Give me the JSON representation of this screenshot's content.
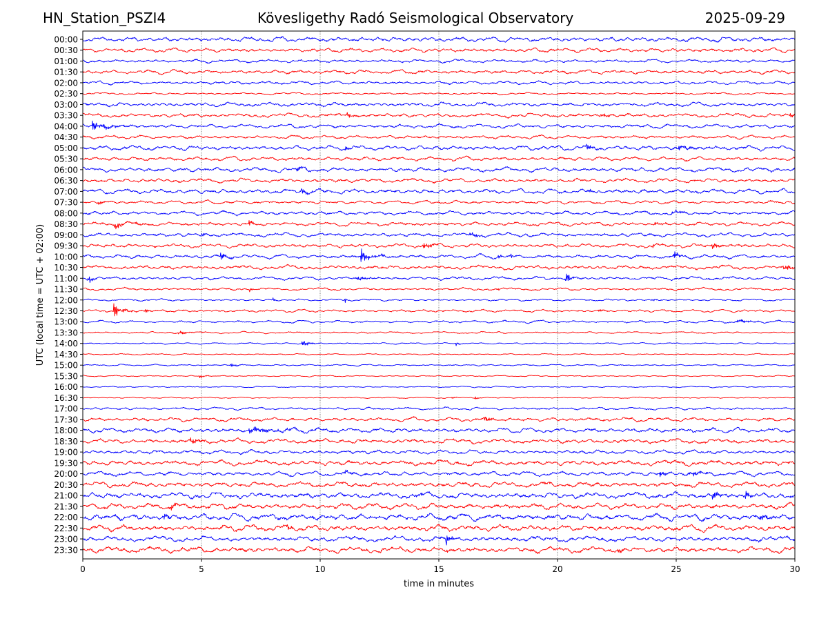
{
  "header": {
    "station": "HN_Station_PSZI4",
    "observatory": "Kövesligethy Radó Seismological Observatory",
    "date": "2025-09-29"
  },
  "chart_data": {
    "type": "line",
    "subtype": "helicorder",
    "title": "Kövesligethy Radó Seismological Observatory",
    "station": "HN_Station_PSZI4",
    "date": "2025-09-29",
    "xlabel": "time in minutes",
    "ylabel": "UTC (local time = UTC + 02:00)",
    "xlim": [
      0,
      30
    ],
    "x_ticks": [
      "0",
      "5",
      "10",
      "15",
      "20",
      "25",
      "30"
    ],
    "grid": "vertical dotted at x = 5, 10, 15, 20, 25",
    "row_colors": {
      "hour": "#0000ff",
      "half_hour": "#ff0000"
    },
    "rows": [
      "00:00",
      "00:30",
      "01:00",
      "01:30",
      "02:00",
      "02:30",
      "03:00",
      "03:30",
      "04:00",
      "04:30",
      "05:00",
      "05:30",
      "06:00",
      "06:30",
      "07:00",
      "07:30",
      "08:00",
      "08:30",
      "09:00",
      "09:30",
      "10:00",
      "10:30",
      "11:00",
      "11:30",
      "12:00",
      "12:30",
      "13:00",
      "13:30",
      "14:00",
      "14:30",
      "15:00",
      "15:30",
      "16:00",
      "16:30",
      "17:00",
      "17:30",
      "18:00",
      "18:30",
      "19:00",
      "19:30",
      "20:00",
      "20:30",
      "21:00",
      "21:30",
      "22:00",
      "22:30",
      "23:00",
      "23:30"
    ],
    "noise_level": [
      0.35,
      0.3,
      0.25,
      0.3,
      0.25,
      0.15,
      0.3,
      0.3,
      0.3,
      0.25,
      0.35,
      0.3,
      0.35,
      0.3,
      0.35,
      0.25,
      0.3,
      0.3,
      0.3,
      0.3,
      0.3,
      0.3,
      0.25,
      0.2,
      0.15,
      0.2,
      0.2,
      0.15,
      0.12,
      0.1,
      0.12,
      0.1,
      0.1,
      0.1,
      0.2,
      0.3,
      0.35,
      0.35,
      0.3,
      0.4,
      0.35,
      0.4,
      0.45,
      0.45,
      0.5,
      0.45,
      0.4,
      0.45
    ],
    "events": [
      {
        "row": "03:30",
        "minute": 11.1,
        "amplitude": 0.5,
        "duration": 0.6
      },
      {
        "row": "03:30",
        "minute": 21.8,
        "amplitude": 0.5,
        "duration": 0.6
      },
      {
        "row": "03:30",
        "minute": 29.8,
        "amplitude": 0.5,
        "duration": 0.3
      },
      {
        "row": "04:00",
        "minute": 0.4,
        "amplitude": 0.8,
        "duration": 1.3
      },
      {
        "row": "05:00",
        "minute": 11.0,
        "amplitude": 0.6,
        "duration": 0.4
      },
      {
        "row": "05:00",
        "minute": 21.2,
        "amplitude": 0.7,
        "duration": 0.5
      },
      {
        "row": "05:00",
        "minute": 25.0,
        "amplitude": 0.4,
        "duration": 1.5
      },
      {
        "row": "06:00",
        "minute": 9.0,
        "amplitude": 0.5,
        "duration": 0.6
      },
      {
        "row": "07:00",
        "minute": 9.2,
        "amplitude": 0.6,
        "duration": 0.8
      },
      {
        "row": "07:00",
        "minute": 21.2,
        "amplitude": 0.6,
        "duration": 0.3
      },
      {
        "row": "07:30",
        "minute": 0.6,
        "amplitude": 0.6,
        "duration": 0.3
      },
      {
        "row": "08:00",
        "minute": 24.8,
        "amplitude": 0.9,
        "duration": 0.5
      },
      {
        "row": "08:30",
        "minute": 1.3,
        "amplitude": 0.5,
        "duration": 1.5
      },
      {
        "row": "08:30",
        "minute": 7.0,
        "amplitude": 0.5,
        "duration": 0.3
      },
      {
        "row": "08:30",
        "minute": 24.1,
        "amplitude": 0.5,
        "duration": 0.4
      },
      {
        "row": "09:00",
        "minute": 5.0,
        "amplitude": 0.9,
        "duration": 0.1
      },
      {
        "row": "09:00",
        "minute": 16.3,
        "amplitude": 0.5,
        "duration": 0.8
      },
      {
        "row": "09:30",
        "minute": 14.3,
        "amplitude": 0.6,
        "duration": 0.7
      },
      {
        "row": "09:30",
        "minute": 24.0,
        "amplitude": 0.6,
        "duration": 0.4
      },
      {
        "row": "09:30",
        "minute": 26.5,
        "amplitude": 0.5,
        "duration": 0.8
      },
      {
        "row": "10:00",
        "minute": 5.8,
        "amplitude": 0.6,
        "duration": 0.6
      },
      {
        "row": "10:00",
        "minute": 11.7,
        "amplitude": 1.4,
        "duration": 0.6
      },
      {
        "row": "10:00",
        "minute": 12.6,
        "amplitude": 1.0,
        "duration": 0.1
      },
      {
        "row": "10:00",
        "minute": 17.5,
        "amplitude": 1.0,
        "duration": 0.1
      },
      {
        "row": "10:00",
        "minute": 18.0,
        "amplitude": 0.7,
        "duration": 0.1
      },
      {
        "row": "10:00",
        "minute": 24.9,
        "amplitude": 0.6,
        "duration": 0.5
      },
      {
        "row": "10:30",
        "minute": 29.5,
        "amplitude": 0.8,
        "duration": 0.6
      },
      {
        "row": "11:00",
        "minute": 0.2,
        "amplitude": 0.8,
        "duration": 0.4
      },
      {
        "row": "11:00",
        "minute": 11.5,
        "amplitude": 0.3,
        "duration": 1.5
      },
      {
        "row": "11:00",
        "minute": 20.3,
        "amplitude": 1.0,
        "duration": 0.5
      },
      {
        "row": "11:30",
        "minute": 7.0,
        "amplitude": 0.5,
        "duration": 0.3
      },
      {
        "row": "11:30",
        "minute": 17.5,
        "amplitude": 0.4,
        "duration": 0.2
      },
      {
        "row": "12:00",
        "minute": 8.0,
        "amplitude": 0.7,
        "duration": 0.1
      },
      {
        "row": "12:00",
        "minute": 11.0,
        "amplitude": 0.9,
        "duration": 0.1
      },
      {
        "row": "12:00",
        "minute": 23.9,
        "amplitude": 0.3,
        "duration": 0.5
      },
      {
        "row": "12:30",
        "minute": 1.3,
        "amplitude": 1.3,
        "duration": 0.8
      },
      {
        "row": "12:30",
        "minute": 2.6,
        "amplitude": 0.6,
        "duration": 0.2
      },
      {
        "row": "12:30",
        "minute": 21.7,
        "amplitude": 0.5,
        "duration": 0.3
      },
      {
        "row": "13:00",
        "minute": 17.7,
        "amplitude": 0.6,
        "duration": 0.1
      },
      {
        "row": "13:00",
        "minute": 27.5,
        "amplitude": 0.3,
        "duration": 1.5
      },
      {
        "row": "13:30",
        "minute": 4.0,
        "amplitude": 0.4,
        "duration": 0.8
      },
      {
        "row": "14:00",
        "minute": 9.2,
        "amplitude": 0.8,
        "duration": 0.5
      },
      {
        "row": "14:00",
        "minute": 15.7,
        "amplitude": 0.6,
        "duration": 0.2
      },
      {
        "row": "15:00",
        "minute": 6.2,
        "amplitude": 0.4,
        "duration": 0.4
      },
      {
        "row": "15:30",
        "minute": 4.9,
        "amplitude": 0.4,
        "duration": 0.3
      },
      {
        "row": "16:30",
        "minute": 15.5,
        "amplitude": 0.5,
        "duration": 0.2
      },
      {
        "row": "16:30",
        "minute": 16.5,
        "amplitude": 0.4,
        "duration": 0.2
      },
      {
        "row": "17:30",
        "minute": 16.9,
        "amplitude": 0.5,
        "duration": 0.6
      },
      {
        "row": "18:00",
        "minute": 7.0,
        "amplitude": 0.5,
        "duration": 3.0
      },
      {
        "row": "18:30",
        "minute": 4.5,
        "amplitude": 0.6,
        "duration": 0.8
      },
      {
        "row": "20:00",
        "minute": 11.0,
        "amplitude": 0.5,
        "duration": 0.5
      },
      {
        "row": "20:00",
        "minute": 24.3,
        "amplitude": 0.8,
        "duration": 0.5
      },
      {
        "row": "20:00",
        "minute": 25.5,
        "amplitude": 0.5,
        "duration": 1.0
      },
      {
        "row": "20:30",
        "minute": 19.4,
        "amplitude": 0.6,
        "duration": 0.3
      },
      {
        "row": "21:00",
        "minute": 26.5,
        "amplitude": 0.9,
        "duration": 0.6
      },
      {
        "row": "21:00",
        "minute": 27.9,
        "amplitude": 0.8,
        "duration": 0.4
      },
      {
        "row": "21:00",
        "minute": 14.0,
        "amplitude": 0.6,
        "duration": 0.3
      },
      {
        "row": "21:30",
        "minute": 3.7,
        "amplitude": 1.0,
        "duration": 0.4
      },
      {
        "row": "22:00",
        "minute": 3.4,
        "amplitude": 0.6,
        "duration": 0.4
      },
      {
        "row": "22:00",
        "minute": 28.5,
        "amplitude": 0.6,
        "duration": 0.8
      },
      {
        "row": "22:30",
        "minute": 8.6,
        "amplitude": 0.6,
        "duration": 0.3
      },
      {
        "row": "23:00",
        "minute": 15.3,
        "amplitude": 1.1,
        "duration": 0.4
      },
      {
        "row": "23:30",
        "minute": 12.5,
        "amplitude": 0.6,
        "duration": 0.3
      },
      {
        "row": "23:30",
        "minute": 15.3,
        "amplitude": 0.6,
        "duration": 0.2
      },
      {
        "row": "23:30",
        "minute": 22.5,
        "amplitude": 0.6,
        "duration": 0.3
      }
    ]
  }
}
